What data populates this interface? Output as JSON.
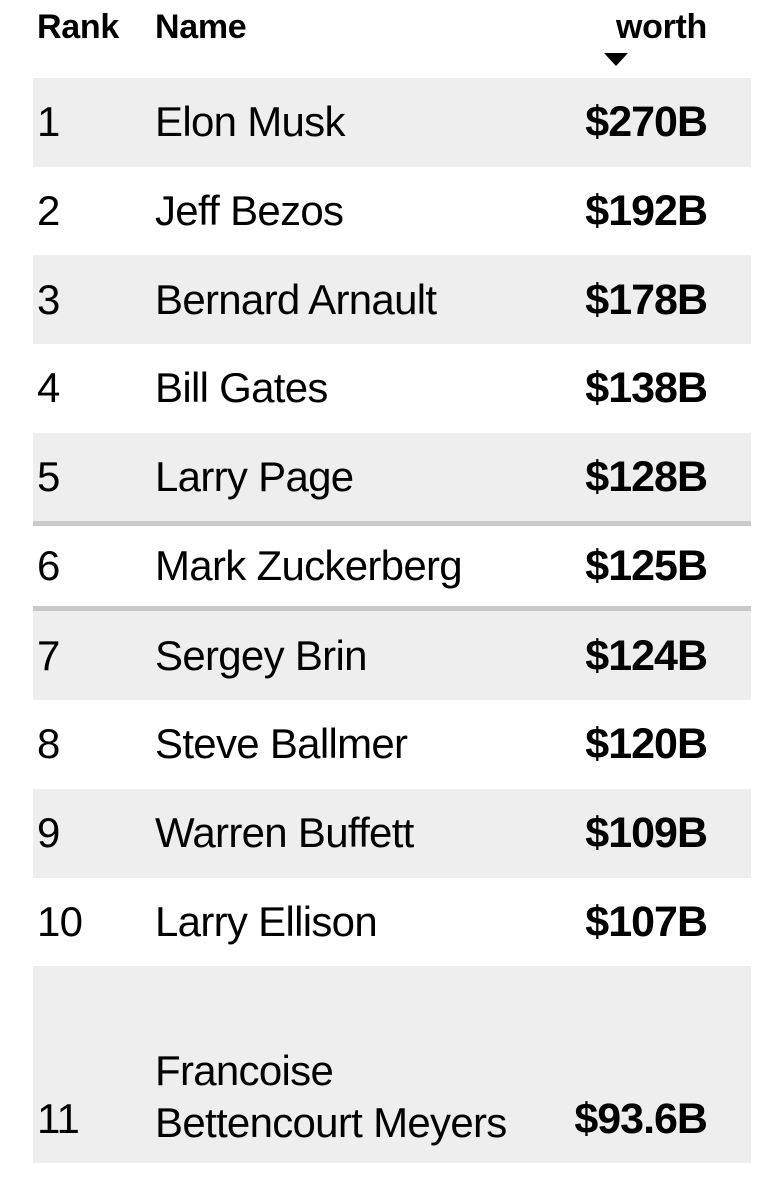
{
  "table": {
    "columns": {
      "rank_label": "Rank",
      "name_label": "Name",
      "worth_label": "worth"
    },
    "sort": {
      "icon": "sort-descending-triangle-icon",
      "direction": "descending",
      "sorted_column": "worth"
    },
    "rows": [
      {
        "rank": "1",
        "name": "Elon Musk",
        "worth": "$270B"
      },
      {
        "rank": "2",
        "name": "Jeff Bezos",
        "worth": "$192B"
      },
      {
        "rank": "3",
        "name": "Bernard Arnault",
        "worth": "$178B"
      },
      {
        "rank": "4",
        "name": "Bill Gates",
        "worth": "$138B"
      },
      {
        "rank": "5",
        "name": "Larry Page",
        "worth": "$128B"
      },
      {
        "rank": "6",
        "name": "Mark Zuckerberg",
        "worth": "$125B"
      },
      {
        "rank": "7",
        "name": "Sergey Brin",
        "worth": "$124B"
      },
      {
        "rank": "8",
        "name": "Steve Ballmer",
        "worth": "$120B"
      },
      {
        "rank": "9",
        "name": "Warren Buffett",
        "worth": "$109B"
      },
      {
        "rank": "10",
        "name": "Larry Ellison",
        "worth": "$107B"
      },
      {
        "rank": "11",
        "name": "Francoise Bettencourt Meyers",
        "worth": "$93.6B"
      }
    ]
  },
  "colors": {
    "background": "#ffffff",
    "row_stripe": "#eeeeee",
    "highlight_separator": "#c9c9c9",
    "text": "#000000"
  }
}
